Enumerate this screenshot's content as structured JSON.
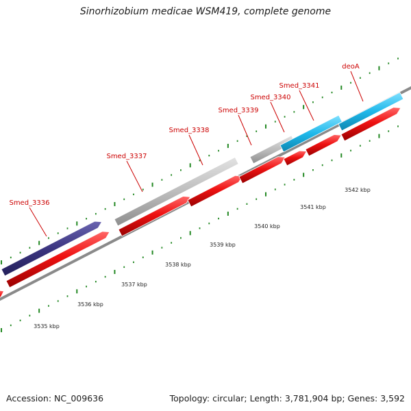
{
  "title": "Sinorhizobium medicae WSM419, complete genome",
  "footer": {
    "accession": "Accession: NC_009636",
    "summary": "Topology: circular; Length: 3,781,904 bp; Genes: 3,592"
  },
  "genes": [
    {
      "name": "Smed_3336"
    },
    {
      "name": "Smed_3337"
    },
    {
      "name": "Smed_3338"
    },
    {
      "name": "Smed_3339"
    },
    {
      "name": "Smed_3340"
    },
    {
      "name": "Smed_3341"
    },
    {
      "name": "deoA"
    }
  ],
  "kbp_ticks": [
    {
      "label": "3535 kbp"
    },
    {
      "label": "3536 kbp"
    },
    {
      "label": "3537 kbp"
    },
    {
      "label": "3538 kbp"
    },
    {
      "label": "3539 kbp"
    },
    {
      "label": "3540 kbp"
    },
    {
      "label": "3541 kbp"
    },
    {
      "label": "3542 kbp"
    }
  ],
  "colors": {
    "cds": "#ee1111",
    "operon_purple": "#3b3580",
    "operon_gray": "#b8b8b8",
    "operon_cyan": "#1fb8ea",
    "backbone": "#8a8a8a",
    "tick": "#228822",
    "label_red": "#cc0000"
  }
}
